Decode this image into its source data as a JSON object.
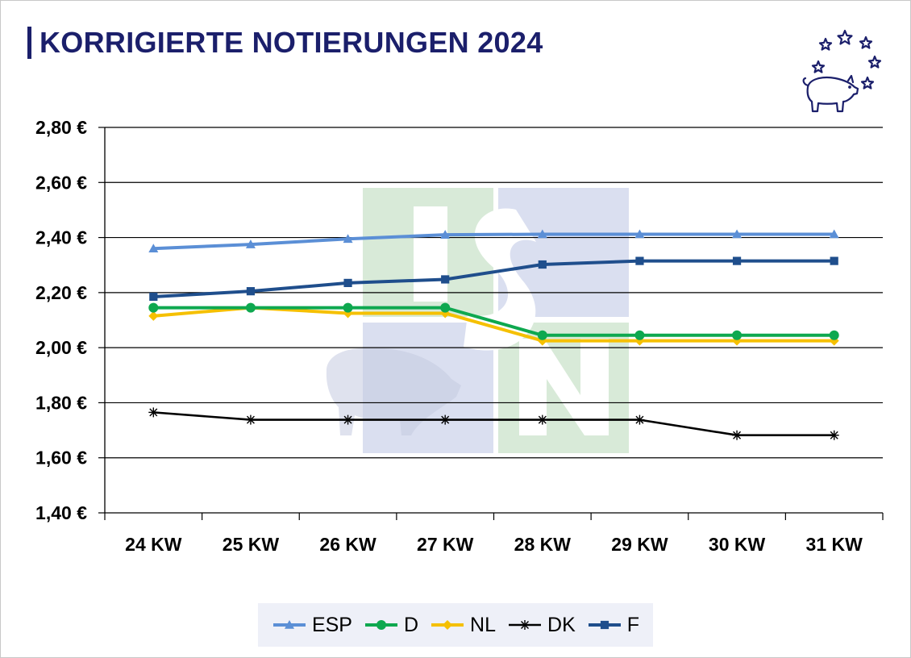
{
  "title": "KORRIGIERTE NOTIERUNGEN 2024",
  "logo": {
    "icon": "pig-with-stars-icon",
    "color": "#1b1f6b"
  },
  "watermark": {
    "text": "ISN",
    "colors": [
      "#d4e8d4",
      "#d6dcee"
    ]
  },
  "chart_data": {
    "type": "line",
    "title": "KORRIGIERTE NOTIERUNGEN 2024",
    "xlabel": "",
    "ylabel": "",
    "categories": [
      "24 KW",
      "25 KW",
      "26 KW",
      "27 KW",
      "28 KW",
      "29 KW",
      "30 KW",
      "31 KW"
    ],
    "ylim": [
      1.4,
      2.8
    ],
    "yticks": [
      "1,40 €",
      "1,60 €",
      "1,80 €",
      "2,00 €",
      "2,20 €",
      "2,40 €",
      "2,60 €",
      "2,80 €"
    ],
    "grid": "horizontal",
    "legend_position": "bottom",
    "series": [
      {
        "name": "ESP",
        "marker": "triangle",
        "color": "#5b8fd6",
        "values": [
          2.36,
          2.375,
          2.395,
          2.41,
          2.412,
          2.412,
          2.412,
          2.412
        ]
      },
      {
        "name": "D",
        "marker": "circle",
        "color": "#0ea84f",
        "values": [
          2.145,
          2.145,
          2.145,
          2.145,
          2.045,
          2.045,
          2.045,
          2.045
        ]
      },
      {
        "name": "NL",
        "marker": "diamond",
        "color": "#f5c000",
        "values": [
          2.115,
          2.145,
          2.125,
          2.125,
          2.025,
          2.025,
          2.025,
          2.025
        ]
      },
      {
        "name": "DK",
        "marker": "star",
        "color": "#000000",
        "values": [
          1.765,
          1.738,
          1.738,
          1.738,
          1.738,
          1.738,
          1.682,
          1.682
        ]
      },
      {
        "name": "F",
        "marker": "square",
        "color": "#1f4e8c",
        "values": [
          2.185,
          2.205,
          2.235,
          2.248,
          2.302,
          2.315,
          2.315,
          2.315
        ]
      }
    ]
  }
}
